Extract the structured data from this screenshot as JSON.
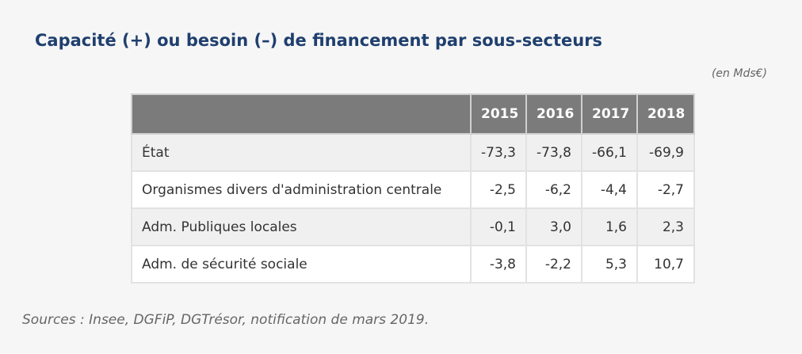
{
  "title": "Capacité (+) ou besoin (–) de financement par sous-secteurs",
  "unit_note": "(en Mds€)",
  "table": {
    "columns": [
      "2015",
      "2016",
      "2017",
      "2018"
    ],
    "rows": [
      {
        "label": "État",
        "values": [
          "-73,3",
          "-73,8",
          "-66,1",
          "-69,9"
        ]
      },
      {
        "label": "Organismes divers d'administration centrale",
        "values": [
          "-2,5",
          "-6,2",
          "-4,4",
          "-2,7"
        ]
      },
      {
        "label": "Adm. Publiques locales",
        "values": [
          "-0,1",
          "3,0",
          "1,6",
          "2,3"
        ]
      },
      {
        "label": "Adm. de sécurité sociale",
        "values": [
          "-3,8",
          "-2,2",
          "5,3",
          "10,7"
        ]
      }
    ]
  },
  "source": "Sources : Insee, DGFiP, DGTrésor, notification de mars 2019."
}
